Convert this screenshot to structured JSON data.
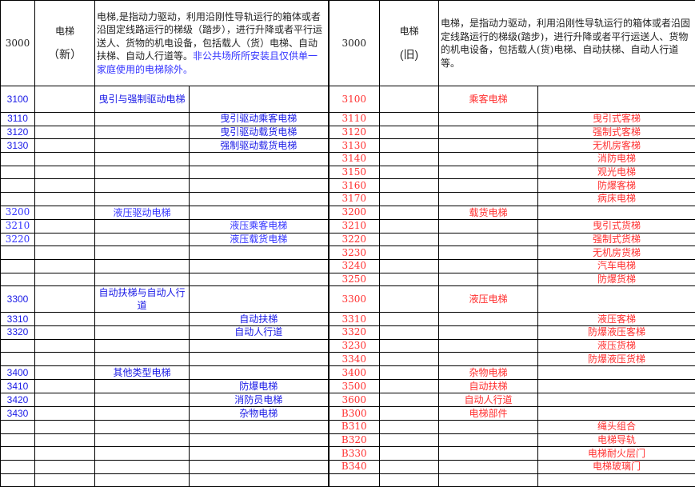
{
  "header": {
    "new": {
      "code": "3000",
      "name": "电梯",
      "tag": "（新）",
      "desc": "电梯,是指动力驱动，利用沿刚性导轨运行的箱体或者沿固定线路运行的梯级（踏步），进行升降或者平行运送人、货物的机电设备，包括载人（货）电梯、自动扶梯、自动人行道等。",
      "desc_note": "非公共场所所安装且仅供单一家庭使用的电梯除外。"
    },
    "old": {
      "code": "3000",
      "name": "电梯",
      "tag": "(旧)",
      "desc": "电梯，是指动力驱动，利用沿刚性导轨运行的箱体或者沿固定线路运行的梯级(踏步)，进行升降或者平行运送人、货物的机电设备，包括载人(货)电梯、自动扶梯、自动人行道等。"
    }
  },
  "colors": {
    "new_text": "#1a1ae6",
    "old_text": "#ff3030"
  },
  "rows": [
    {
      "l": [
        "3100",
        "曳引与强制驱动电梯",
        ""
      ],
      "r": [
        "3100",
        "乘客电梯",
        ""
      ]
    },
    {
      "l": [
        "3110",
        "",
        "曳引驱动乘客电梯"
      ],
      "r": [
        "3110",
        "",
        "曳引式客梯"
      ]
    },
    {
      "l": [
        "3120",
        "",
        "曳引驱动载货电梯"
      ],
      "r": [
        "3120",
        "",
        "强制式客梯"
      ]
    },
    {
      "l": [
        "3130",
        "",
        "强制驱动载货电梯"
      ],
      "r": [
        "3130",
        "",
        "无机房客梯"
      ]
    },
    {
      "l": [
        "",
        "",
        ""
      ],
      "r": [
        "3140",
        "",
        "消防电梯"
      ]
    },
    {
      "l": [
        "",
        "",
        ""
      ],
      "r": [
        "3150",
        "",
        "观光电梯"
      ]
    },
    {
      "l": [
        "",
        "",
        ""
      ],
      "r": [
        "3160",
        "",
        "防爆客梯"
      ]
    },
    {
      "l": [
        "",
        "",
        ""
      ],
      "r": [
        "3170",
        "",
        "病床电梯"
      ]
    },
    {
      "l": [
        "3200",
        "液压驱动电梯",
        ""
      ],
      "r": [
        "3200",
        "载货电梯",
        ""
      ]
    },
    {
      "l": [
        "3210",
        "",
        "液压乘客电梯"
      ],
      "r": [
        "3210",
        "",
        "曳引式货梯"
      ]
    },
    {
      "l": [
        "3220",
        "",
        "液压载货电梯"
      ],
      "r": [
        "3220",
        "",
        "强制式货梯"
      ]
    },
    {
      "l": [
        "",
        "",
        ""
      ],
      "r": [
        "3230",
        "",
        "无机房货梯"
      ]
    },
    {
      "l": [
        "",
        "",
        ""
      ],
      "r": [
        "3240",
        "",
        "汽车电梯"
      ]
    },
    {
      "l": [
        "",
        "",
        ""
      ],
      "r": [
        "3250",
        "",
        "防爆货梯"
      ]
    },
    {
      "l": [
        "3300",
        "自动扶梯与自动人行道",
        ""
      ],
      "r": [
        "3300",
        "液压电梯",
        ""
      ]
    },
    {
      "l": [
        "3310",
        "",
        "自动扶梯"
      ],
      "r": [
        "3310",
        "",
        "液压客梯"
      ]
    },
    {
      "l": [
        "3320",
        "",
        "自动人行道"
      ],
      "r": [
        "3320",
        "",
        "防爆液压客梯"
      ]
    },
    {
      "l": [
        "",
        "",
        ""
      ],
      "r": [
        "3230",
        "",
        "液压货梯"
      ]
    },
    {
      "l": [
        "",
        "",
        ""
      ],
      "r": [
        "3340",
        "",
        "防爆液压货梯"
      ]
    },
    {
      "l": [
        "3400",
        "其他类型电梯",
        ""
      ],
      "r": [
        "3400",
        "杂物电梯",
        ""
      ]
    },
    {
      "l": [
        "3410",
        "",
        "防爆电梯"
      ],
      "r": [
        "3500",
        "自动扶梯",
        ""
      ]
    },
    {
      "l": [
        "3420",
        "",
        "消防员电梯"
      ],
      "r": [
        "3600",
        "自动人行道",
        ""
      ]
    },
    {
      "l": [
        "3430",
        "",
        "杂物电梯"
      ],
      "r": [
        "B300",
        "电梯部件",
        ""
      ]
    },
    {
      "l": [
        "",
        "",
        ""
      ],
      "r": [
        "B310",
        "",
        "绳头组合"
      ]
    },
    {
      "l": [
        "",
        "",
        ""
      ],
      "r": [
        "B320",
        "",
        "电梯导轨"
      ]
    },
    {
      "l": [
        "",
        "",
        ""
      ],
      "r": [
        "B330",
        "",
        "电梯耐火层门"
      ]
    },
    {
      "l": [
        "",
        "",
        ""
      ],
      "r": [
        "B340",
        "",
        "电梯玻璃门"
      ]
    },
    {
      "l": [
        "",
        "",
        ""
      ],
      "r": [
        "",
        "",
        ""
      ]
    }
  ]
}
